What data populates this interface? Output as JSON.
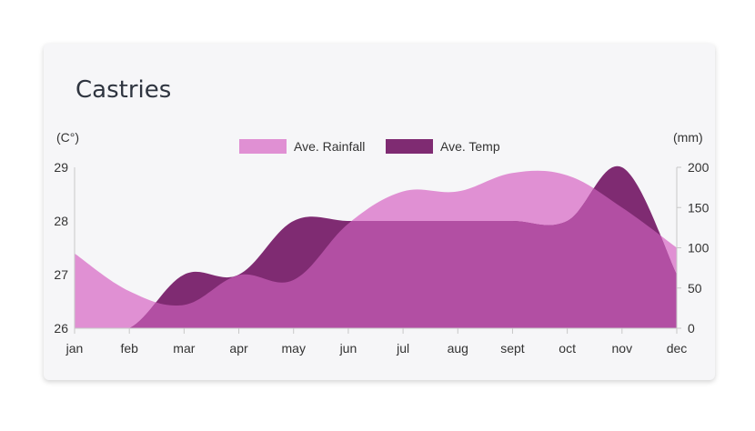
{
  "title": "Castries",
  "colors": {
    "rainfall": "#e090d3",
    "temp": "#7f2b72",
    "overlap": "#b24fa3"
  },
  "chart_data": {
    "type": "area",
    "title": "Castries",
    "categories": [
      "jan",
      "feb",
      "mar",
      "apr",
      "may",
      "jun",
      "jul",
      "aug",
      "sept",
      "oct",
      "nov",
      "dec"
    ],
    "series": [
      {
        "name": "Ave. Rainfall",
        "axis": "right",
        "values": [
          93,
          46,
          29,
          66,
          60,
          130,
          170,
          170,
          193,
          190,
          150,
          100
        ]
      },
      {
        "name": "Ave. Temp",
        "axis": "left",
        "values": [
          26.0,
          26.0,
          27.0,
          27.0,
          28.0,
          28.0,
          28.0,
          28.0,
          28.0,
          28.0,
          29.0,
          27.0
        ]
      }
    ],
    "y_left": {
      "label": "(C°)",
      "range": [
        26,
        29
      ],
      "ticks": [
        "26",
        "27",
        "28",
        "29"
      ]
    },
    "y_right": {
      "label": "(mm)",
      "range": [
        0,
        200
      ],
      "ticks": [
        "0",
        "50",
        "100",
        "150",
        "200"
      ]
    },
    "legend": {
      "placement": "top-center",
      "items": [
        "Ave. Rainfall",
        "Ave. Temp"
      ]
    },
    "grid": false
  }
}
